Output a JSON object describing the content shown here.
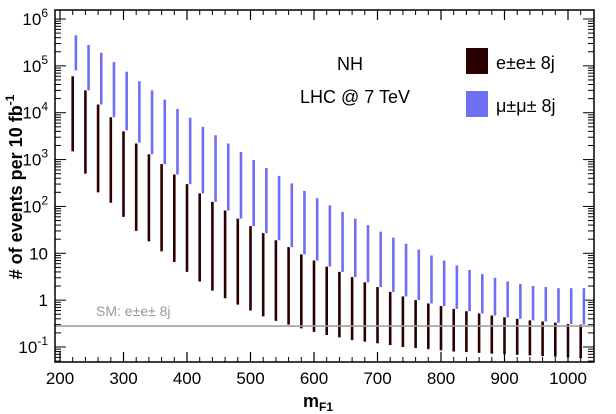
{
  "chart_data": {
    "type": "range-bar",
    "xlabel": "m",
    "xlabel_sub": "F1",
    "ylabel": "# of events per 10 fb",
    "ylabel_sup": "-1",
    "x_range": [
      200,
      1030
    ],
    "y_range": [
      0.05,
      1000000
    ],
    "y_scale": "log",
    "x_ticks": [
      200,
      300,
      400,
      500,
      600,
      700,
      800,
      900,
      1000
    ],
    "x_tick_labels": [
      "200",
      "300",
      "400",
      "500",
      "600",
      "700",
      "800",
      "900",
      "1000"
    ],
    "y_ticks": [
      {
        "value": 1000000,
        "base": "10",
        "exp": "6"
      },
      {
        "value": 100000,
        "base": "10",
        "exp": "5"
      },
      {
        "value": 10000,
        "base": "10",
        "exp": "4"
      },
      {
        "value": 1000,
        "base": "10",
        "exp": "3"
      },
      {
        "value": 100,
        "base": "10",
        "exp": "2"
      },
      {
        "value": 10,
        "base": "10",
        "exp": ""
      },
      {
        "value": 1,
        "base": "1",
        "exp": ""
      },
      {
        "value": 0.1,
        "base": "10",
        "exp": "-1"
      }
    ],
    "annotations": [
      "NH",
      "LHC @ 7 TeV"
    ],
    "series": [
      {
        "name": "e±e± 8j",
        "color": "#2b0000",
        "x": [
          220,
          240,
          260,
          280,
          300,
          320,
          340,
          360,
          380,
          400,
          420,
          440,
          460,
          480,
          500,
          520,
          540,
          560,
          580,
          600,
          620,
          640,
          660,
          680,
          700,
          720,
          740,
          760,
          780,
          800,
          820,
          840,
          860,
          880,
          900,
          920,
          940,
          960,
          980,
          1000,
          1020
        ],
        "low": [
          1500,
          500,
          200,
          120,
          60,
          30,
          18,
          11,
          6.5,
          4.0,
          2.5,
          1.6,
          1.1,
          0.8,
          0.6,
          0.45,
          0.36,
          0.3,
          0.25,
          0.21,
          0.18,
          0.16,
          0.14,
          0.13,
          0.12,
          0.11,
          0.1,
          0.095,
          0.09,
          0.085,
          0.08,
          0.078,
          0.075,
          0.072,
          0.07,
          0.068,
          0.066,
          0.064,
          0.062,
          0.06,
          0.058
        ],
        "high": [
          60000,
          30000,
          15000,
          8000,
          4000,
          2200,
          1300,
          800,
          480,
          300,
          190,
          125,
          82,
          55,
          38,
          27,
          19,
          13.5,
          9.5,
          7.0,
          5.2,
          4.0,
          3.1,
          2.4,
          1.9,
          1.5,
          1.2,
          1.0,
          0.85,
          0.75,
          0.65,
          0.58,
          0.52,
          0.47,
          0.43,
          0.4,
          0.37,
          0.35,
          0.33,
          0.31,
          0.3
        ]
      },
      {
        "name": "μ±μ± 8j",
        "color": "#6f6ff5",
        "x": [
          225,
          245,
          265,
          285,
          305,
          325,
          345,
          365,
          385,
          405,
          425,
          445,
          465,
          485,
          505,
          525,
          545,
          565,
          585,
          605,
          625,
          645,
          665,
          685,
          705,
          725,
          745,
          765,
          785,
          805,
          825,
          845,
          865,
          885,
          905,
          925,
          945,
          965,
          985,
          1005,
          1025
        ],
        "low": [
          80000,
          30000,
          15000,
          8000,
          4200,
          2300,
          1300,
          800,
          480,
          300,
          190,
          125,
          82,
          55,
          38,
          27,
          19,
          13.5,
          9.5,
          7.0,
          5.2,
          4.0,
          3.1,
          2.4,
          1.9,
          1.5,
          1.2,
          1.0,
          0.85,
          0.75,
          0.65,
          0.58,
          0.52,
          0.47,
          0.43,
          0.4,
          0.37,
          0.35,
          0.33,
          0.31,
          0.3
        ],
        "high": [
          450000,
          280000,
          190000,
          120000,
          75000,
          47000,
          30000,
          19000,
          12000,
          7800,
          5000,
          3300,
          2200,
          1450,
          980,
          660,
          450,
          310,
          215,
          150,
          106,
          76,
          55,
          40,
          29,
          21.5,
          16,
          12,
          9.0,
          7.0,
          5.5,
          4.4,
          3.6,
          3.0,
          2.5,
          2.2,
          2.0,
          1.9,
          1.8,
          1.8,
          1.8
        ]
      }
    ],
    "reference_line": {
      "label": "SM: e±e± 8j",
      "value": 0.28,
      "color": "#a0a0a0"
    }
  }
}
